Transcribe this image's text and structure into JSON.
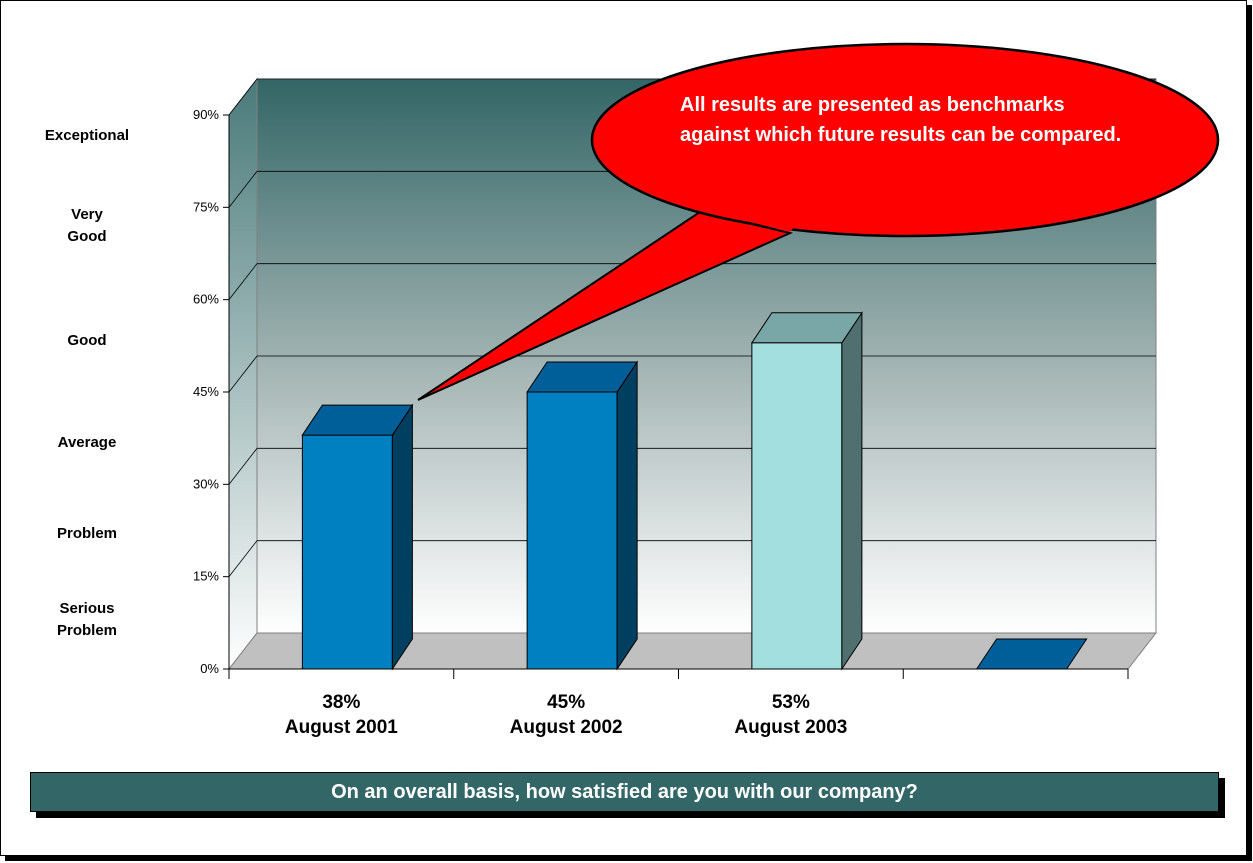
{
  "rating_scale": [
    "Exceptional",
    "Very Good",
    "Good",
    "Average",
    "Problem",
    "Serious Problem"
  ],
  "callout": "All results are presented as benchmarks against which future results can be compared.",
  "question": "On an overall basis, how satisfied are you with our company?",
  "colors": {
    "bar_2001": "#0080c0",
    "bar_2002": "#0080c0",
    "bar_2003": "#a4dfe0",
    "callout": "#ff0000",
    "wall_top": "#336666",
    "question_bar": "#336666"
  },
  "chart_data": {
    "type": "bar",
    "three_d": true,
    "categories": [
      "August 2001",
      "August 2002",
      "August 2003",
      ""
    ],
    "values": [
      38,
      45,
      53,
      0
    ],
    "value_labels": [
      "38%",
      "45%",
      "53%",
      ""
    ],
    "yticks": [
      "0%",
      "15%",
      "30%",
      "45%",
      "60%",
      "75%",
      "90%"
    ],
    "ylim": [
      0,
      90
    ],
    "grid": true,
    "legend": "none"
  }
}
